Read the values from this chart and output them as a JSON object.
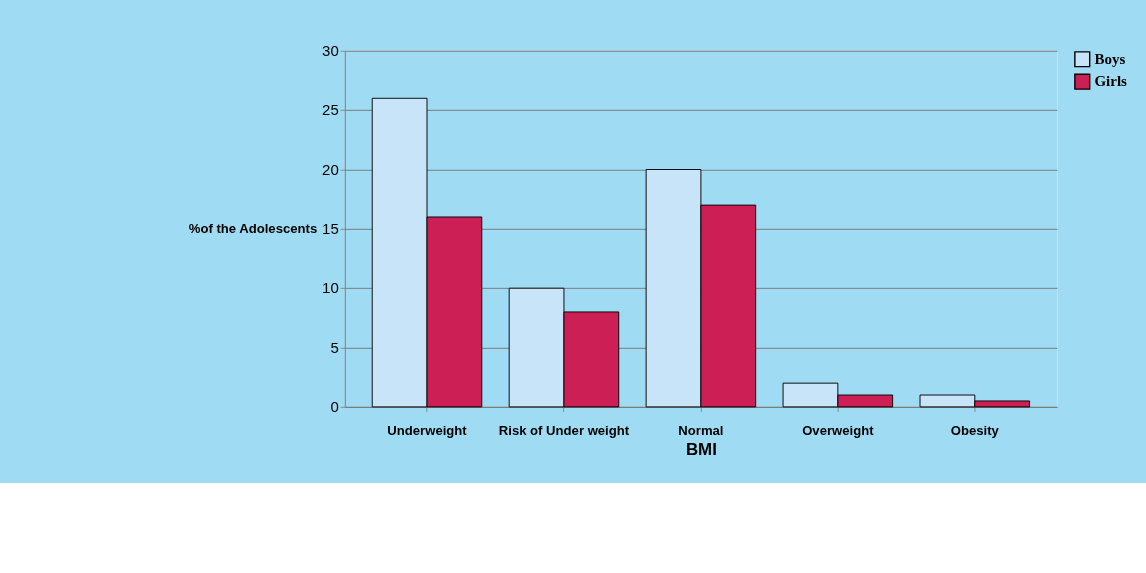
{
  "chart_data": {
    "type": "bar",
    "xlabel": "BMI",
    "ylabel": "%of the Adolescents",
    "categories": [
      "Underweight",
      "Risk of Under weight",
      "Normal",
      "Overweight",
      "Obesity"
    ],
    "series": [
      {
        "name": "Boys",
        "color": "#c8e4f8",
        "values": [
          26,
          10,
          20,
          2,
          1
        ]
      },
      {
        "name": "Girls",
        "color": "#cc1f56",
        "values": [
          16,
          8,
          17,
          1,
          0.5
        ]
      }
    ],
    "ylim": [
      0,
      30
    ],
    "yticks": [
      0,
      5,
      10,
      15,
      20,
      25,
      30
    ],
    "grid": "y",
    "legend": "right"
  }
}
